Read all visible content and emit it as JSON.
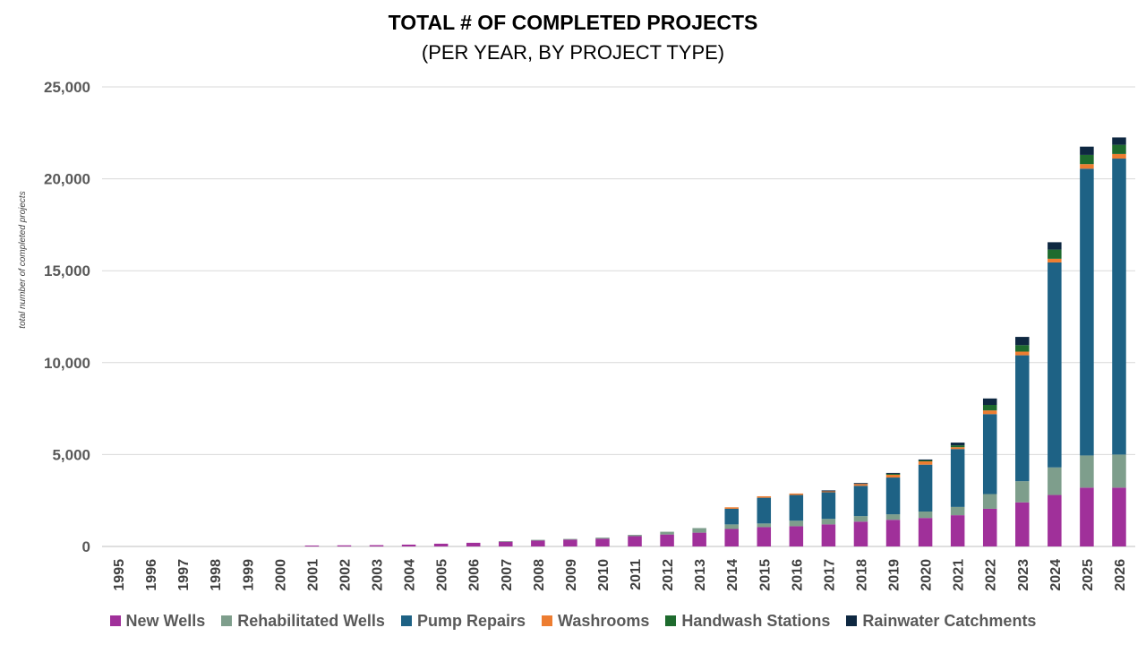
{
  "title": "TOTAL # OF COMPLETED PROJECTS",
  "subtitle": "(PER YEAR, BY PROJECT TYPE)",
  "chart_data": {
    "type": "bar",
    "stacked": true,
    "title": "TOTAL # OF COMPLETED PROJECTS",
    "subtitle": "(PER YEAR, BY PROJECT TYPE)",
    "xlabel": "",
    "ylabel": "total number of completed projects",
    "ylim": [
      0,
      25000
    ],
    "yticks": [
      0,
      5000,
      10000,
      15000,
      20000,
      25000
    ],
    "ytick_labels": [
      "0",
      "5,000",
      "10,000",
      "15,000",
      "20,000",
      "25,000"
    ],
    "grid": true,
    "legend_position": "bottom",
    "categories": [
      "1995",
      "1996",
      "1997",
      "1998",
      "1999",
      "2000",
      "2001",
      "2002",
      "2003",
      "2004",
      "2005",
      "2006",
      "2007",
      "2008",
      "2009",
      "2010",
      "2011",
      "2012",
      "2013",
      "2014",
      "2015",
      "2016",
      "2017",
      "2018",
      "2019",
      "2020",
      "2021",
      "2022",
      "2023",
      "2024",
      "2025",
      "2026"
    ],
    "series": [
      {
        "name": "New Wells",
        "color": "#A0309A",
        "values": [
          0,
          0,
          0,
          0,
          0,
          0,
          50,
          60,
          70,
          100,
          150,
          200,
          260,
          320,
          370,
          420,
          560,
          650,
          750,
          950,
          1050,
          1100,
          1200,
          1350,
          1450,
          1550,
          1700,
          2050,
          2400,
          2800,
          3200,
          3200
        ]
      },
      {
        "name": "Rehabilitated Wells",
        "color": "#7E9E8C",
        "values": [
          0,
          0,
          0,
          0,
          0,
          0,
          0,
          0,
          0,
          0,
          0,
          0,
          30,
          40,
          40,
          60,
          70,
          150,
          250,
          250,
          200,
          300,
          300,
          300,
          300,
          350,
          450,
          800,
          1150,
          1500,
          1750,
          1800
        ]
      },
      {
        "name": "Pump Repairs",
        "color": "#1E6285",
        "values": [
          0,
          0,
          0,
          0,
          0,
          0,
          0,
          0,
          0,
          0,
          0,
          0,
          0,
          0,
          0,
          0,
          0,
          0,
          0,
          850,
          1400,
          1400,
          1450,
          1650,
          2000,
          2550,
          3150,
          4350,
          6850,
          11150,
          15600,
          16100
        ]
      },
      {
        "name": "Washrooms",
        "color": "#ED7D31",
        "values": [
          0,
          0,
          0,
          0,
          0,
          0,
          0,
          0,
          0,
          0,
          0,
          0,
          0,
          0,
          0,
          0,
          0,
          0,
          0,
          80,
          80,
          80,
          50,
          100,
          150,
          180,
          100,
          200,
          200,
          200,
          250,
          250
        ]
      },
      {
        "name": "Handwash Stations",
        "color": "#1E6B2E",
        "values": [
          0,
          0,
          0,
          0,
          0,
          0,
          0,
          0,
          0,
          0,
          0,
          0,
          0,
          0,
          0,
          0,
          0,
          0,
          0,
          0,
          0,
          0,
          0,
          0,
          50,
          50,
          100,
          300,
          350,
          500,
          500,
          500
        ]
      },
      {
        "name": "Rainwater Catchments",
        "color": "#0E2841",
        "values": [
          0,
          0,
          0,
          0,
          0,
          0,
          0,
          0,
          0,
          0,
          0,
          0,
          0,
          0,
          0,
          0,
          0,
          0,
          0,
          0,
          0,
          0,
          50,
          50,
          50,
          50,
          150,
          350,
          450,
          400,
          450,
          400
        ]
      }
    ]
  }
}
